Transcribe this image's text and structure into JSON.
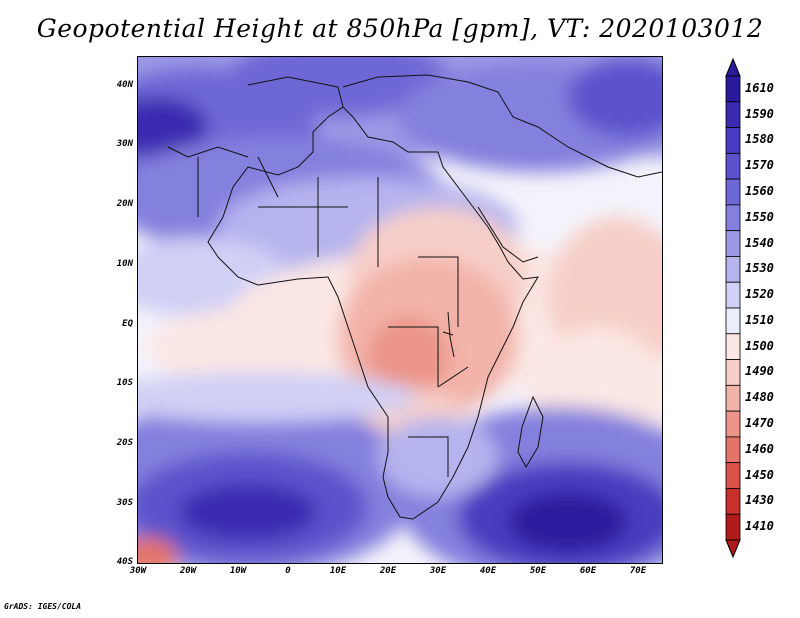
{
  "title": "Geopotential Height at 850hPa [gpm], VT: 2020103012",
  "footer": "GrADS: IGES/COLA",
  "map": {
    "lat_labels": [
      "40N",
      "30N",
      "20N",
      "10N",
      "EQ",
      "10S",
      "20S",
      "30S",
      "40S"
    ],
    "lon_labels": [
      "30W",
      "20W",
      "10W",
      "0",
      "10E",
      "20E",
      "30E",
      "40E",
      "50E",
      "60E",
      "70E"
    ],
    "lat_range": [
      -40,
      45
    ],
    "lon_range": [
      -30,
      75
    ]
  },
  "colorbar": {
    "levels": [
      "1610",
      "1590",
      "1580",
      "1570",
      "1560",
      "1550",
      "1540",
      "1530",
      "1520",
      "1510",
      "1500",
      "1490",
      "1480",
      "1470",
      "1460",
      "1450",
      "1430",
      "1410"
    ],
    "colors": [
      "#2a1a9c",
      "#3a2ab0",
      "#4a3cc0",
      "#5b52cc",
      "#6e68d6",
      "#8480de",
      "#9c9ae6",
      "#b5b4ee",
      "#d0d0f6",
      "#ecedfb",
      "#fbe7e4",
      "#f7cfc8",
      "#f2b3a9",
      "#ec9488",
      "#e47468",
      "#d95246",
      "#c8302a",
      "#b01a1a"
    ]
  }
}
